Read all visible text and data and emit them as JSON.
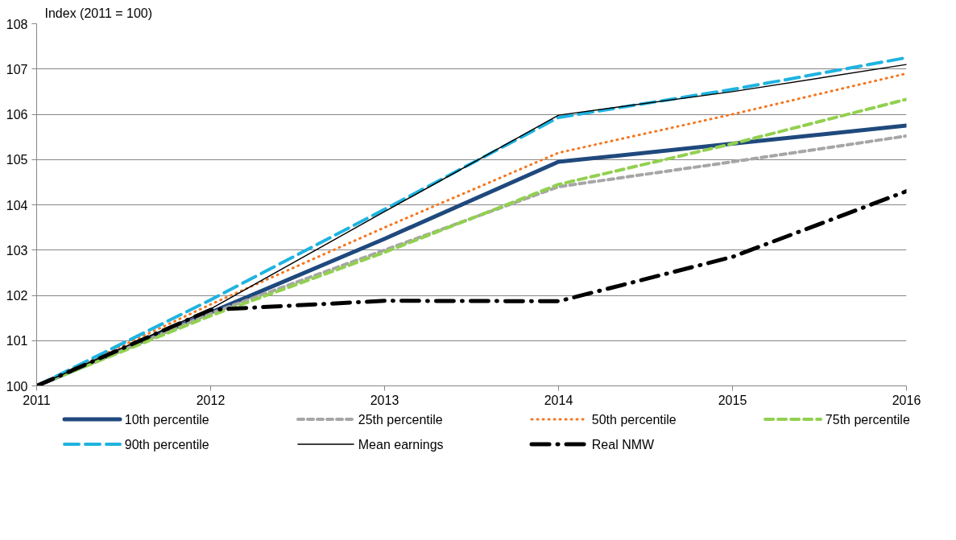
{
  "chart_data": {
    "type": "line",
    "ylabel": "Index (2011 = 100)",
    "x": [
      2011,
      2012,
      2013,
      2014,
      2015,
      2016
    ],
    "xlim": [
      2011,
      2016
    ],
    "xticks": [
      2011,
      2012,
      2013,
      2014,
      2015,
      2016
    ],
    "ylim": [
      100,
      108
    ],
    "yticks": [
      100,
      101,
      102,
      103,
      104,
      105,
      106,
      107,
      108
    ],
    "grid": "y",
    "legend": "bottom",
    "series": [
      {
        "name": "10th percentile",
        "color": "#1f497d",
        "line_style": "solid",
        "values": [
          100,
          101.62,
          103.25,
          104.95,
          105.35,
          105.75
        ]
      },
      {
        "name": "25th percentile",
        "color": "#a6a6a6",
        "line_style": "dashed",
        "values": [
          100,
          101.6,
          103.0,
          104.4,
          104.95,
          105.52
        ]
      },
      {
        "name": "50th percentile",
        "color": "#f4761f",
        "line_style": "dotted",
        "values": [
          100,
          101.8,
          103.5,
          105.15,
          106.0,
          106.9
        ]
      },
      {
        "name": "75th percentile",
        "color": "#92d050",
        "line_style": "dashed",
        "values": [
          100,
          101.55,
          102.95,
          104.45,
          105.35,
          106.33
        ]
      },
      {
        "name": "90th percentile",
        "color": "#1fb3e0",
        "line_style": "dashed",
        "values": [
          100,
          101.9,
          103.9,
          105.93,
          106.55,
          107.25
        ]
      },
      {
        "name": "Mean earnings",
        "color": "#000000",
        "line_style": "solid",
        "values": [
          100,
          101.7,
          103.85,
          105.98,
          106.5,
          107.1
        ]
      },
      {
        "name": "Real NMW",
        "color": "#000000",
        "line_style": "dashdot",
        "values": [
          100,
          101.68,
          101.88,
          101.87,
          102.85,
          104.3
        ]
      }
    ]
  }
}
